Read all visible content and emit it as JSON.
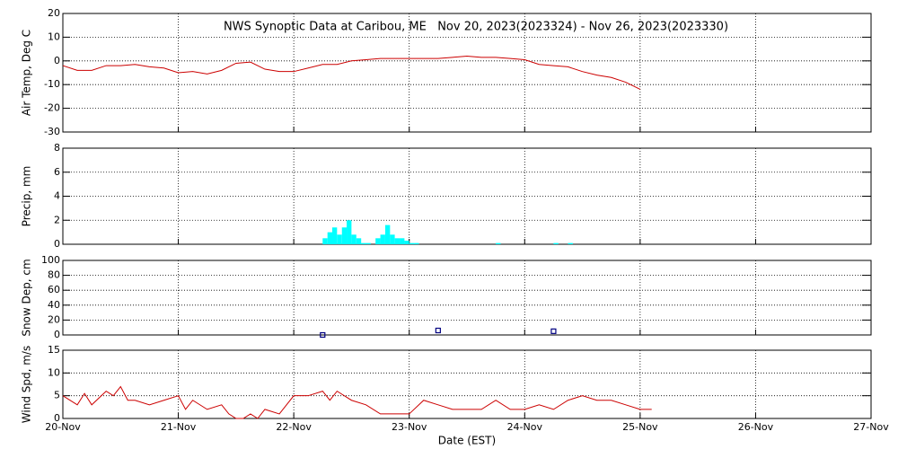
{
  "chart_data": [
    {
      "type": "line",
      "title": "NWS Synoptic Data at Caribou, ME   Nov 20, 2023(2023324) - Nov 26, 2023(2023330)",
      "y_label": "Air Temp, Deg C",
      "xlim": [
        0,
        7
      ],
      "ylim": [
        -30,
        20
      ],
      "yticks": [
        -30,
        -20,
        -10,
        0,
        10,
        20
      ],
      "grid": true,
      "series": [
        {
          "color": "#cc0000",
          "x": [
            0,
            0.125,
            0.25,
            0.375,
            0.5,
            0.625,
            0.75,
            0.875,
            1,
            1.125,
            1.25,
            1.375,
            1.5,
            1.625,
            1.75,
            1.875,
            2,
            2.125,
            2.25,
            2.375,
            2.5,
            2.625,
            2.75,
            2.875,
            3,
            3.125,
            3.25,
            3.375,
            3.5,
            3.625,
            3.75,
            3.875,
            4,
            4.125,
            4.25,
            4.375,
            4.5,
            4.625,
            4.75,
            4.875,
            5
          ],
          "values": [
            -2,
            -4,
            -4,
            -2,
            -2,
            -1.5,
            -2.5,
            -3,
            -5,
            -4.5,
            -5.5,
            -4,
            -1,
            -0.5,
            -3.5,
            -4.5,
            -4.5,
            -3,
            -1.5,
            -1.5,
            0,
            0.5,
            1,
            1,
            1,
            1,
            1,
            1.5,
            2,
            1.5,
            1.5,
            1,
            0.5,
            -1.5,
            -2,
            -2.5,
            -4.5,
            -6,
            -7,
            -9,
            -12
          ]
        }
      ]
    },
    {
      "type": "bar",
      "y_label": "Precip, mm",
      "xlim": [
        0,
        7
      ],
      "ylim": [
        0,
        8
      ],
      "yticks": [
        0,
        2,
        4,
        6,
        8
      ],
      "grid": true,
      "series": [
        {
          "color": "#00ffff",
          "x": [
            2.25,
            2.292,
            2.333,
            2.375,
            2.417,
            2.458,
            2.5,
            2.542,
            2.583,
            2.625,
            2.708,
            2.75,
            2.792,
            2.833,
            2.875,
            2.917,
            2.958,
            3.0,
            3.042,
            3.75,
            4.25,
            4.375
          ],
          "values": [
            0.5,
            1.0,
            1.4,
            0.8,
            1.4,
            2.0,
            0.8,
            0.5,
            0.1,
            0.1,
            0.5,
            0.8,
            1.6,
            0.8,
            0.5,
            0.5,
            0.3,
            0.1,
            0.1,
            0.1,
            0.1,
            0.1
          ]
        }
      ]
    },
    {
      "type": "scatter",
      "y_label": "Snow Dep, cm",
      "xlim": [
        0,
        7
      ],
      "ylim": [
        0,
        100
      ],
      "yticks": [
        0,
        20,
        40,
        60,
        80,
        100
      ],
      "grid": true,
      "series": [
        {
          "color": "#000080",
          "x": [
            2.25,
            3.25,
            4.25
          ],
          "values": [
            0,
            6,
            5
          ]
        }
      ]
    },
    {
      "type": "line",
      "y_label": "Wind Spd, m/s",
      "x_label": "Date (EST)",
      "xlim": [
        0,
        7
      ],
      "ylim": [
        0,
        15
      ],
      "yticks": [
        0,
        5,
        10,
        15
      ],
      "grid": true,
      "xticks": [
        {
          "value": 0,
          "label": "20-Nov"
        },
        {
          "value": 1,
          "label": "21-Nov"
        },
        {
          "value": 2,
          "label": "22-Nov"
        },
        {
          "value": 3,
          "label": "23-Nov"
        },
        {
          "value": 4,
          "label": "24-Nov"
        },
        {
          "value": 5,
          "label": "25-Nov"
        },
        {
          "value": 6,
          "label": "26-Nov"
        },
        {
          "value": 7,
          "label": "27-Nov"
        }
      ],
      "series": [
        {
          "color": "#cc0000",
          "x": [
            0,
            0.125,
            0.1875,
            0.25,
            0.375,
            0.4375,
            0.5,
            0.5625,
            0.625,
            0.75,
            0.875,
            1,
            1.0625,
            1.125,
            1.25,
            1.375,
            1.4375,
            1.5,
            1.5625,
            1.625,
            1.6875,
            1.75,
            1.875,
            2,
            2.125,
            2.25,
            2.3125,
            2.375,
            2.5,
            2.625,
            2.75,
            2.875,
            3,
            3.125,
            3.25,
            3.375,
            3.5,
            3.625,
            3.75,
            3.875,
            4,
            4.125,
            4.25,
            4.375,
            4.5,
            4.625,
            4.75,
            4.875,
            5,
            5.1
          ],
          "values": [
            5,
            3,
            5.5,
            3,
            6,
            5,
            7,
            4,
            4,
            3,
            4,
            5,
            2,
            4,
            2,
            3,
            1,
            0,
            0,
            1,
            0,
            2,
            1,
            5,
            5,
            6,
            4,
            6,
            4,
            3,
            1,
            1,
            1,
            4,
            3,
            2,
            2,
            2,
            4,
            2,
            2,
            3,
            2,
            4,
            5,
            4,
            4,
            3,
            2,
            2
          ]
        }
      ]
    }
  ]
}
